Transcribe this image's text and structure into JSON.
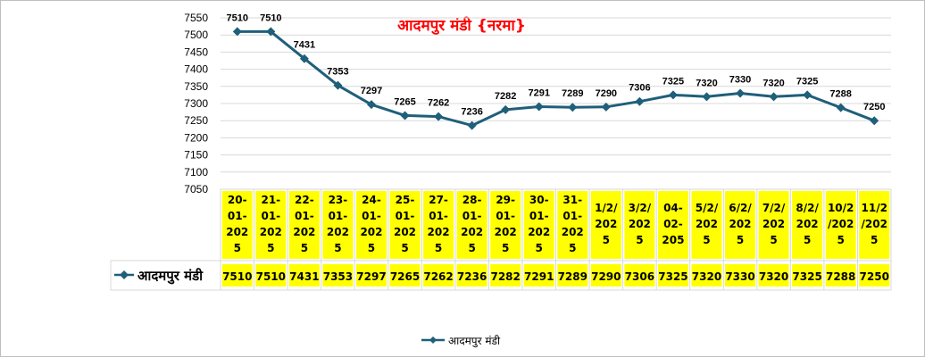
{
  "chart_data": {
    "type": "line",
    "title": "आदमपुर मंडी {नरमा}",
    "xlabel": "",
    "ylabel": "",
    "ylim": [
      7050,
      7550
    ],
    "yticks": [
      7050,
      7100,
      7150,
      7200,
      7250,
      7300,
      7350,
      7400,
      7450,
      7500,
      7550
    ],
    "grid": true,
    "legend_position": "bottom",
    "categories": [
      "20-01-2025",
      "21-01-2025",
      "22-01-2025",
      "23-01-2025",
      "24-01-2025",
      "25-01-2025",
      "27-01-2025",
      "28-01-2025",
      "29-01-2025",
      "30-01-2025",
      "31-01-2025",
      "1/2/2025",
      "3/2/2025",
      "04-02-205",
      "5/2/2025",
      "6/2/2025",
      "7/2/2025",
      "8/2/2025",
      "10/2/2025",
      "11/2/2025"
    ],
    "category_display": [
      [
        "20-",
        "01-",
        "202",
        "5"
      ],
      [
        "21-",
        "01-",
        "202",
        "5"
      ],
      [
        "22-",
        "01-",
        "202",
        "5"
      ],
      [
        "23-",
        "01-",
        "202",
        "5"
      ],
      [
        "24-",
        "01-",
        "202",
        "5"
      ],
      [
        "25-",
        "01-",
        "202",
        "5"
      ],
      [
        "27-",
        "01-",
        "202",
        "5"
      ],
      [
        "28-",
        "01-",
        "202",
        "5"
      ],
      [
        "29-",
        "01-",
        "202",
        "5"
      ],
      [
        "30-",
        "01-",
        "202",
        "5"
      ],
      [
        "31-",
        "01-",
        "202",
        "5"
      ],
      [
        "1/2/",
        "202",
        "5"
      ],
      [
        "3/2/",
        "202",
        "5"
      ],
      [
        "04-",
        "02-",
        "205"
      ],
      [
        "5/2/",
        "202",
        "5"
      ],
      [
        "6/2/",
        "202",
        "5"
      ],
      [
        "7/2/",
        "202",
        "5"
      ],
      [
        "8/2/",
        "202",
        "5"
      ],
      [
        "10/2",
        "/202",
        "5"
      ],
      [
        "11/2",
        "/202",
        "5"
      ]
    ],
    "series": [
      {
        "name": "आदमपुर मंडी",
        "values": [
          7510,
          7510,
          7431,
          7353,
          7297,
          7265,
          7262,
          7236,
          7282,
          7291,
          7289,
          7290,
          7306,
          7325,
          7320,
          7330,
          7320,
          7325,
          7288,
          7250
        ]
      }
    ],
    "colors": {
      "line": "#1f5f7a",
      "title": "#ff0000",
      "highlight": "#ffff00",
      "grid": "#d9d9d9"
    }
  }
}
